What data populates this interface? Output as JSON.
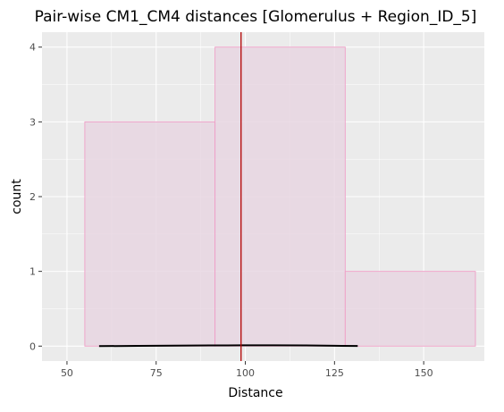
{
  "chart_data": {
    "type": "histogram",
    "title": "Pair-wise CM1_CM4 distances [Glomerulus + Region_ID_5]",
    "xlabel": "Distance",
    "ylabel": "count",
    "xlim": [
      43,
      167
    ],
    "ylim": [
      -0.2,
      4.2
    ],
    "x_ticks": [
      50,
      75,
      100,
      125,
      150
    ],
    "y_ticks": [
      0,
      1,
      2,
      3,
      4
    ],
    "bins": [
      {
        "x0": 55,
        "x1": 91.5,
        "count": 3
      },
      {
        "x0": 91.5,
        "x1": 128,
        "count": 4
      },
      {
        "x0": 128,
        "x1": 164.5,
        "count": 1
      }
    ],
    "vline": {
      "x": 98.8,
      "color": "#b20000"
    },
    "density_curve": [
      [
        59,
        0.0
      ],
      [
        70,
        0.003
      ],
      [
        80,
        0.006
      ],
      [
        90,
        0.009
      ],
      [
        99,
        0.011
      ],
      [
        108,
        0.011
      ],
      [
        117,
        0.009
      ],
      [
        125,
        0.005
      ],
      [
        131.5,
        0.002
      ]
    ],
    "colors": {
      "panel": "#ebebeb",
      "grid": "#ffffff",
      "bar_fill": "#e8d6e2",
      "bar_stroke": "#ef9fc7",
      "curve": "#000000"
    }
  }
}
